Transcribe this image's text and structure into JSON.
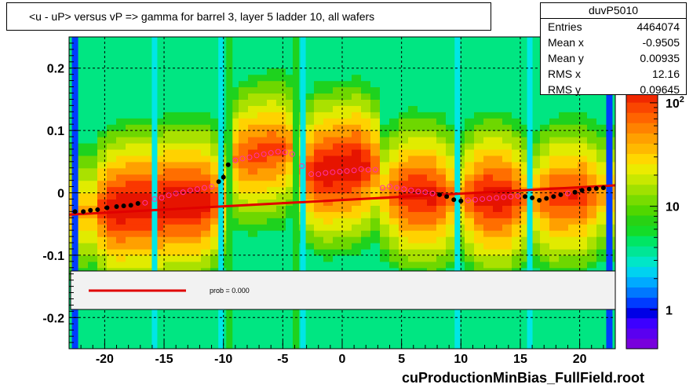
{
  "title": "<u - uP>       versus   vP =>  gamma for barrel 3, layer 5 ladder 10, all wafers",
  "stats": {
    "name": "duvP5010",
    "rows": [
      {
        "key": "Entries",
        "value": "4464074"
      },
      {
        "key": "Mean x",
        "value": "-0.9505"
      },
      {
        "key": "Mean y",
        "value": "0.00935"
      },
      {
        "key": "RMS x",
        "value": "12.16"
      },
      {
        "key": "RMS y",
        "value": "0.09645"
      }
    ]
  },
  "legend": {
    "label": "prob = 0.000",
    "line_color": "#e00000"
  },
  "footer": "cuProductionMinBias_FullField.root",
  "chart_data": {
    "type": "heatmap",
    "title": "<u - uP>       versus   vP =>  gamma for barrel 3, layer 5 ladder 10, all wafers",
    "xlabel": "",
    "ylabel": "",
    "xlim": [
      -23,
      23
    ],
    "ylim": [
      -0.25,
      0.25
    ],
    "x_ticks": [
      -20,
      -15,
      -10,
      -5,
      0,
      5,
      10,
      15,
      20
    ],
    "x_tick_labels": [
      "-20",
      "-15",
      "-10",
      "-5",
      "0",
      "5",
      "10",
      "15",
      "20"
    ],
    "y_ticks": [
      0.2,
      0.1,
      0,
      -0.1,
      -0.2
    ],
    "y_tick_labels": [
      "0.2",
      "0.1",
      "0",
      "-0.1",
      "-0.2"
    ],
    "grid": true,
    "z_scale": "log",
    "z_ticks": [
      1,
      10,
      100
    ],
    "z_tick_labels": [
      "1",
      "10",
      "10^2"
    ],
    "low_occupancy_columns_x": [
      -22.5,
      -15.8,
      -10.2,
      -3.3,
      9.7,
      15.8,
      22.5
    ],
    "high_occupancy_columns_x": [
      -9.5,
      -3.9
    ],
    "profile_mean_points": [
      [
        -22.5,
        -0.03
      ],
      [
        -21.8,
        -0.03
      ],
      [
        -21.2,
        -0.028
      ],
      [
        -20.6,
        -0.027
      ],
      [
        -19.8,
        -0.024
      ],
      [
        -19.0,
        -0.022
      ],
      [
        -18.4,
        -0.021
      ],
      [
        -17.8,
        -0.02
      ],
      [
        -17.2,
        -0.017
      ],
      [
        -16.6,
        -0.016
      ],
      [
        -15.8,
        -0.01
      ],
      [
        -15.2,
        -0.008
      ],
      [
        -14.6,
        -0.004
      ],
      [
        -14.0,
        -0.001
      ],
      [
        -13.4,
        0.001
      ],
      [
        -12.8,
        0.004
      ],
      [
        -12.2,
        0.006
      ],
      [
        -11.6,
        0.008
      ],
      [
        -11.0,
        0.01
      ],
      [
        -10.4,
        0.018
      ],
      [
        -10.0,
        0.025
      ],
      [
        -9.6,
        0.045
      ],
      [
        -9.0,
        0.052
      ],
      [
        -8.4,
        0.055
      ],
      [
        -7.8,
        0.057
      ],
      [
        -7.2,
        0.06
      ],
      [
        -6.6,
        0.062
      ],
      [
        -6.0,
        0.064
      ],
      [
        -5.4,
        0.066
      ],
      [
        -4.8,
        0.065
      ],
      [
        -4.2,
        0.062
      ],
      [
        -3.4,
        0.043
      ],
      [
        -2.6,
        0.03
      ],
      [
        -2.0,
        0.03
      ],
      [
        -1.4,
        0.032
      ],
      [
        -0.8,
        0.033
      ],
      [
        -0.2,
        0.034
      ],
      [
        0.4,
        0.035
      ],
      [
        1.0,
        0.036
      ],
      [
        1.6,
        0.038
      ],
      [
        2.2,
        0.037
      ],
      [
        2.8,
        0.037
      ],
      [
        3.4,
        0.008
      ],
      [
        4.0,
        0.01
      ],
      [
        4.6,
        0.008
      ],
      [
        5.2,
        0.006
      ],
      [
        5.8,
        0.004
      ],
      [
        6.4,
        0.002
      ],
      [
        7.0,
        0.001
      ],
      [
        7.6,
        -0.001
      ],
      [
        8.2,
        -0.003
      ],
      [
        8.8,
        -0.006
      ],
      [
        9.4,
        -0.011
      ],
      [
        10.0,
        -0.013
      ],
      [
        10.6,
        -0.012
      ],
      [
        11.2,
        -0.011
      ],
      [
        11.8,
        -0.01
      ],
      [
        12.4,
        -0.009
      ],
      [
        13.0,
        -0.008
      ],
      [
        13.6,
        -0.007
      ],
      [
        14.2,
        -0.006
      ],
      [
        14.8,
        -0.005
      ],
      [
        15.4,
        -0.006
      ],
      [
        16.0,
        -0.008
      ],
      [
        16.6,
        -0.012
      ],
      [
        17.2,
        -0.009
      ],
      [
        17.8,
        -0.006
      ],
      [
        18.4,
        -0.003
      ],
      [
        19.0,
        -0.001
      ],
      [
        19.6,
        0.001
      ],
      [
        20.2,
        0.004
      ],
      [
        20.8,
        0.006
      ],
      [
        21.4,
        0.007
      ],
      [
        22.0,
        0.008
      ]
    ],
    "fit_line": {
      "x": [
        -23,
        23
      ],
      "y": [
        -0.035,
        0.012
      ]
    }
  }
}
